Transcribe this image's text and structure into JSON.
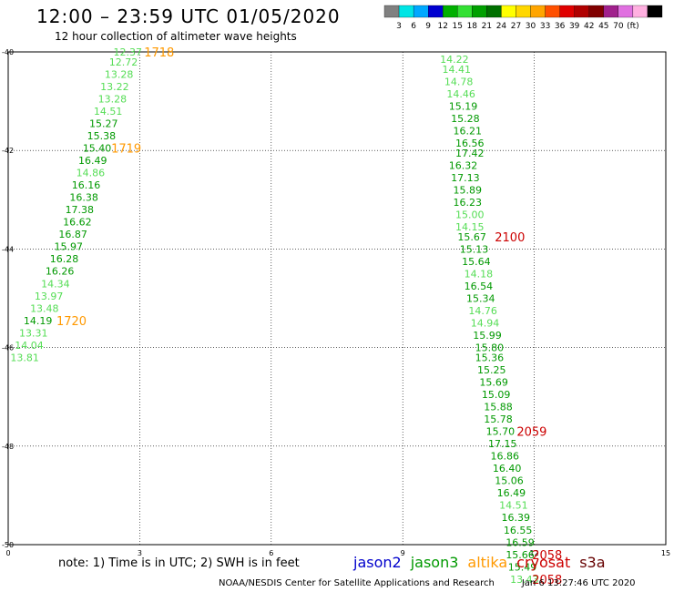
{
  "header": {
    "title": "12:00 – 23:59 UTC 01/05/2020",
    "subtitle": "12 hour collection of altimeter wave heights"
  },
  "colorbar": {
    "colors": [
      "#808080",
      "#00e5e5",
      "#00a8ff",
      "#0000d0",
      "#00b000",
      "#33e033",
      "#00a000",
      "#007000",
      "#ffff00",
      "#ffd700",
      "#ffa500",
      "#ff5000",
      "#e00000",
      "#b00000",
      "#800000",
      "#a0208c",
      "#e070e0",
      "#ffb0e0",
      "#000000"
    ],
    "labels": [
      "3",
      "6",
      "9",
      "12",
      "15",
      "18",
      "21",
      "24",
      "27",
      "30",
      "33",
      "36",
      "39",
      "42",
      "45",
      "70",
      "(ft)"
    ]
  },
  "note": "note:  1) Time is in UTC;  2) SWH is in feet",
  "legend": [
    {
      "name": "jason2",
      "color": "#0000cc"
    },
    {
      "name": "jason3",
      "color": "#009900"
    },
    {
      "name": "altika",
      "color": "#ff9900"
    },
    {
      "name": "cryosat",
      "color": "#cc0000"
    },
    {
      "name": "s3a",
      "color": "#660000"
    }
  ],
  "footer": {
    "credit": "NOAA/NESDIS Center for Satellite Applications and Research",
    "timestamp": "Jan  6 13:27:46 UTC 2020"
  },
  "chart_data": {
    "type": "scatter",
    "xlim": [
      0,
      15
    ],
    "ylim": [
      -50,
      -40
    ],
    "x_ticks": [
      "0",
      "3",
      "6",
      "9",
      "12",
      "15"
    ],
    "y_ticks": [
      "-40",
      "-42",
      "-44",
      "-46",
      "-48",
      "-50"
    ],
    "grid": true,
    "colors": {
      "green": "#009900",
      "light_green": "#55dd55",
      "orange": "#ff9900",
      "red": "#cc0000"
    },
    "points": [
      {
        "x": 2.4,
        "y": -40.0,
        "text": "12.37",
        "color": "light_green"
      },
      {
        "x": 2.3,
        "y": -40.2,
        "text": "12.72",
        "color": "light_green"
      },
      {
        "x": 2.2,
        "y": -40.45,
        "text": "13.28",
        "color": "light_green"
      },
      {
        "x": 2.1,
        "y": -40.7,
        "text": "13.22",
        "color": "light_green"
      },
      {
        "x": 2.05,
        "y": -40.95,
        "text": "13.28",
        "color": "light_green"
      },
      {
        "x": 1.95,
        "y": -41.2,
        "text": "14.51",
        "color": "light_green"
      },
      {
        "x": 1.85,
        "y": -41.45,
        "text": "15.27",
        "color": "green"
      },
      {
        "x": 1.8,
        "y": -41.7,
        "text": "15.38",
        "color": "green"
      },
      {
        "x": 1.7,
        "y": -41.95,
        "text": "15.40",
        "color": "green"
      },
      {
        "x": 1.6,
        "y": -42.2,
        "text": "16.49",
        "color": "green"
      },
      {
        "x": 1.55,
        "y": -42.45,
        "text": "14.86",
        "color": "light_green"
      },
      {
        "x": 1.45,
        "y": -42.7,
        "text": "16.16",
        "color": "green"
      },
      {
        "x": 1.4,
        "y": -42.95,
        "text": "16.38",
        "color": "green"
      },
      {
        "x": 1.3,
        "y": -43.2,
        "text": "17.38",
        "color": "green"
      },
      {
        "x": 1.25,
        "y": -43.45,
        "text": "16.62",
        "color": "green"
      },
      {
        "x": 1.15,
        "y": -43.7,
        "text": "16.87",
        "color": "green"
      },
      {
        "x": 1.05,
        "y": -43.95,
        "text": "15.97",
        "color": "green"
      },
      {
        "x": 0.95,
        "y": -44.2,
        "text": "16.28",
        "color": "green"
      },
      {
        "x": 0.85,
        "y": -44.45,
        "text": "16.26",
        "color": "green"
      },
      {
        "x": 0.75,
        "y": -44.7,
        "text": "14.34",
        "color": "light_green"
      },
      {
        "x": 0.6,
        "y": -44.95,
        "text": "13.97",
        "color": "light_green"
      },
      {
        "x": 0.5,
        "y": -45.2,
        "text": "13.48",
        "color": "light_green"
      },
      {
        "x": 0.35,
        "y": -45.45,
        "text": "14.19",
        "color": "green"
      },
      {
        "x": 0.25,
        "y": -45.7,
        "text": "13.31",
        "color": "light_green"
      },
      {
        "x": 0.15,
        "y": -45.95,
        "text": "14.04",
        "color": "light_green"
      },
      {
        "x": 0.05,
        "y": -46.2,
        "text": "13.81",
        "color": "light_green"
      },
      {
        "x": 9.85,
        "y": -40.15,
        "text": "14.22",
        "color": "light_green"
      },
      {
        "x": 9.9,
        "y": -40.35,
        "text": "14.41",
        "color": "light_green"
      },
      {
        "x": 9.95,
        "y": -40.6,
        "text": "14.78",
        "color": "light_green"
      },
      {
        "x": 10.0,
        "y": -40.85,
        "text": "14.46",
        "color": "light_green"
      },
      {
        "x": 10.05,
        "y": -41.1,
        "text": "15.19",
        "color": "green"
      },
      {
        "x": 10.1,
        "y": -41.35,
        "text": "15.28",
        "color": "green"
      },
      {
        "x": 10.15,
        "y": -41.6,
        "text": "16.21",
        "color": "green"
      },
      {
        "x": 10.2,
        "y": -41.85,
        "text": "16.56",
        "color": "green"
      },
      {
        "x": 10.2,
        "y": -42.05,
        "text": "17.42",
        "color": "green"
      },
      {
        "x": 10.05,
        "y": -42.3,
        "text": "16.32",
        "color": "green"
      },
      {
        "x": 10.1,
        "y": -42.55,
        "text": "17.13",
        "color": "green"
      },
      {
        "x": 10.15,
        "y": -42.8,
        "text": "15.89",
        "color": "green"
      },
      {
        "x": 10.15,
        "y": -43.05,
        "text": "16.23",
        "color": "green"
      },
      {
        "x": 10.2,
        "y": -43.3,
        "text": "15.00",
        "color": "light_green"
      },
      {
        "x": 10.2,
        "y": -43.55,
        "text": "14.15",
        "color": "light_green"
      },
      {
        "x": 10.25,
        "y": -43.75,
        "text": "15.67",
        "color": "green"
      },
      {
        "x": 10.3,
        "y": -44.0,
        "text": "15.13",
        "color": "green"
      },
      {
        "x": 10.35,
        "y": -44.25,
        "text": "15.64",
        "color": "green"
      },
      {
        "x": 10.4,
        "y": -44.5,
        "text": "14.18",
        "color": "light_green"
      },
      {
        "x": 10.4,
        "y": -44.75,
        "text": "16.54",
        "color": "green"
      },
      {
        "x": 10.45,
        "y": -45.0,
        "text": "15.34",
        "color": "green"
      },
      {
        "x": 10.5,
        "y": -45.25,
        "text": "14.76",
        "color": "light_green"
      },
      {
        "x": 10.55,
        "y": -45.5,
        "text": "14.94",
        "color": "light_green"
      },
      {
        "x": 10.6,
        "y": -45.75,
        "text": "15.99",
        "color": "green"
      },
      {
        "x": 10.65,
        "y": -46.0,
        "text": "15.80",
        "color": "green"
      },
      {
        "x": 10.65,
        "y": -46.2,
        "text": "15.36",
        "color": "green"
      },
      {
        "x": 10.7,
        "y": -46.45,
        "text": "15.25",
        "color": "green"
      },
      {
        "x": 10.75,
        "y": -46.7,
        "text": "15.69",
        "color": "green"
      },
      {
        "x": 10.8,
        "y": -46.95,
        "text": "15.09",
        "color": "green"
      },
      {
        "x": 10.85,
        "y": -47.2,
        "text": "15.88",
        "color": "green"
      },
      {
        "x": 10.85,
        "y": -47.45,
        "text": "15.78",
        "color": "green"
      },
      {
        "x": 10.9,
        "y": -47.7,
        "text": "15.70",
        "color": "green"
      },
      {
        "x": 10.95,
        "y": -47.95,
        "text": "17.15",
        "color": "green"
      },
      {
        "x": 11.0,
        "y": -48.2,
        "text": "16.86",
        "color": "green"
      },
      {
        "x": 11.05,
        "y": -48.45,
        "text": "16.40",
        "color": "green"
      },
      {
        "x": 11.1,
        "y": -48.7,
        "text": "15.06",
        "color": "green"
      },
      {
        "x": 11.15,
        "y": -48.95,
        "text": "16.49",
        "color": "green"
      },
      {
        "x": 11.2,
        "y": -49.2,
        "text": "14.51",
        "color": "light_green"
      },
      {
        "x": 11.25,
        "y": -49.45,
        "text": "16.39",
        "color": "green"
      },
      {
        "x": 11.3,
        "y": -49.7,
        "text": "16.55",
        "color": "green"
      },
      {
        "x": 11.35,
        "y": -49.95,
        "text": "16.59",
        "color": "green"
      },
      {
        "x": 11.35,
        "y": -50.2,
        "text": "15.66",
        "color": "green"
      },
      {
        "x": 11.4,
        "y": -50.45,
        "text": "15.49",
        "color": "green"
      },
      {
        "x": 11.45,
        "y": -50.7,
        "text": "13.43",
        "color": "light_green"
      }
    ],
    "time_labels": [
      {
        "x": 3.1,
        "y": -40.0,
        "text": "1718",
        "color": "orange"
      },
      {
        "x": 2.35,
        "y": -41.95,
        "text": "1719",
        "color": "orange"
      },
      {
        "x": 1.1,
        "y": -45.45,
        "text": "1720",
        "color": "orange"
      },
      {
        "x": 11.1,
        "y": -43.75,
        "text": "2100",
        "color": "red"
      },
      {
        "x": 11.6,
        "y": -47.7,
        "text": "2059",
        "color": "red"
      },
      {
        "x": 11.95,
        "y": -50.2,
        "text": "2058",
        "color": "red"
      },
      {
        "x": 11.95,
        "y": -50.7,
        "text": "2058",
        "color": "red"
      }
    ]
  }
}
